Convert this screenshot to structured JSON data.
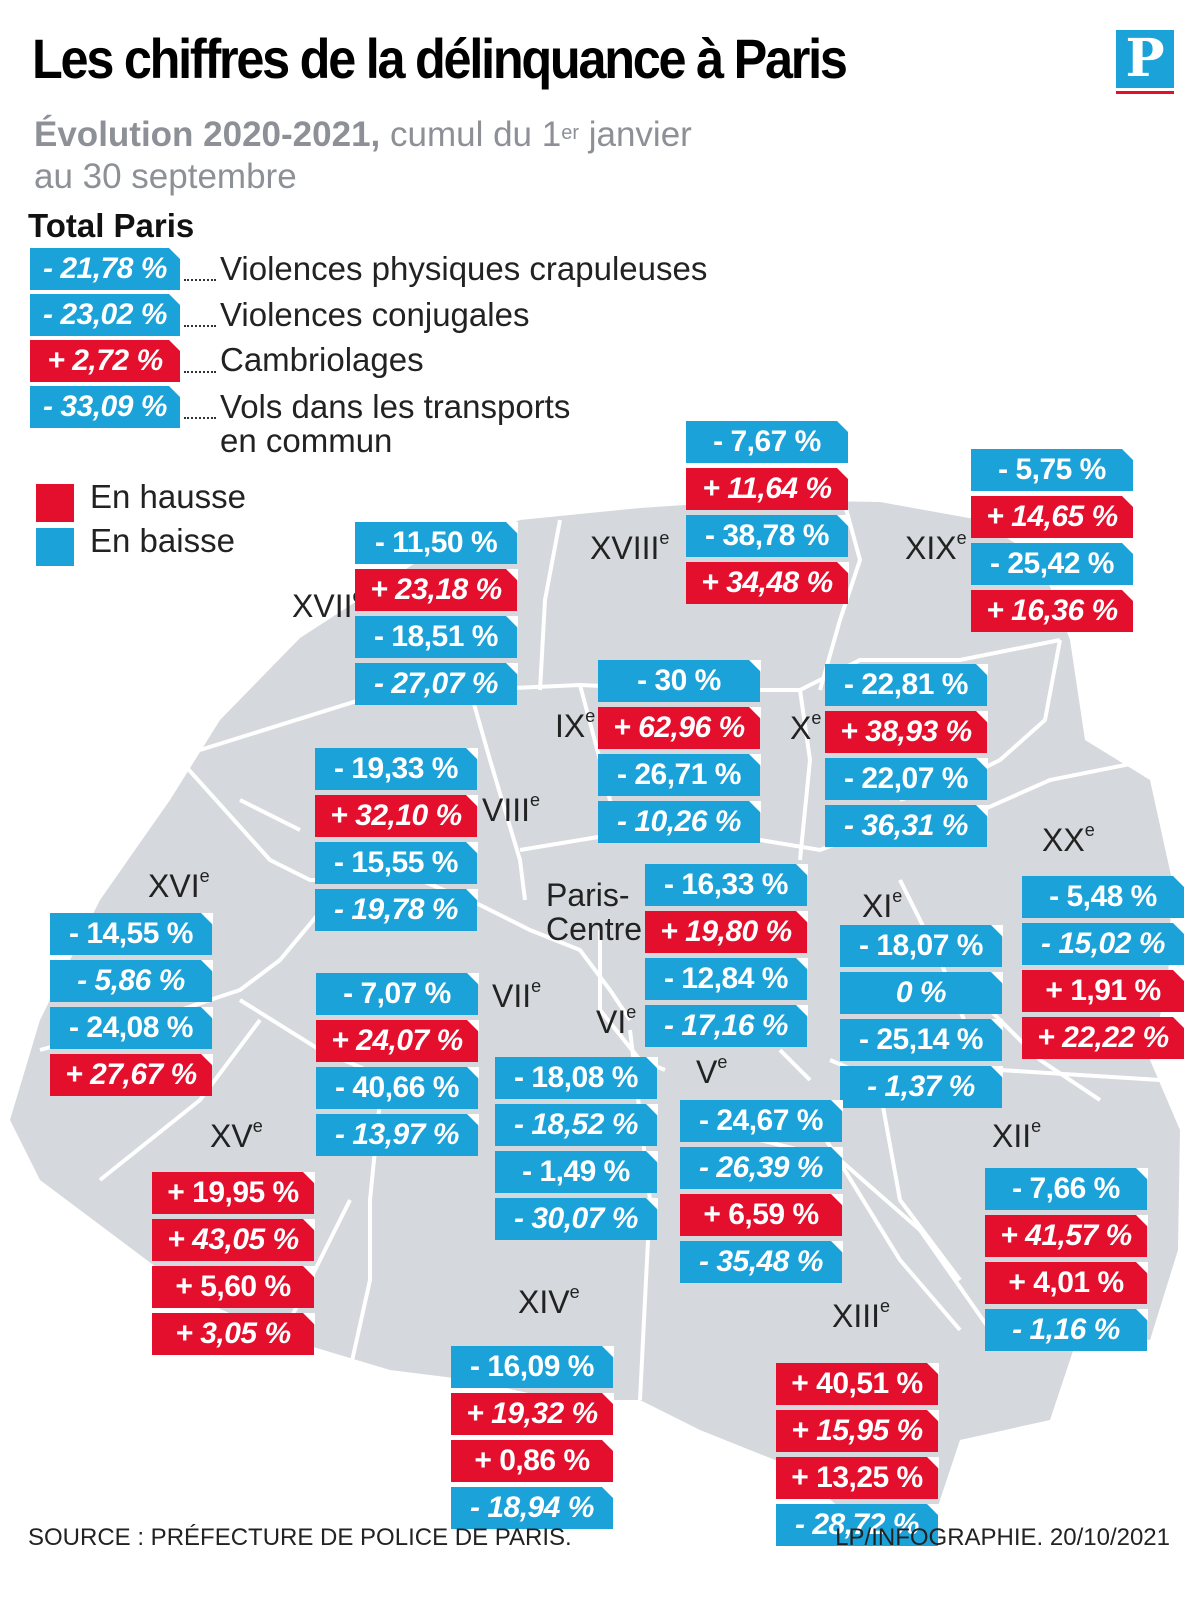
{
  "title": "Les chiffres de la délinquance à Paris",
  "logo_letter": "P",
  "subtitle": {
    "bold": "Évolution 2020-2021,",
    "rest_a": " cumul du 1",
    "sup": "er",
    "rest_b": " janvier",
    "line2": "au 30 septembre"
  },
  "total": {
    "title": "Total Paris",
    "rows": [
      {
        "value": "- 21,78 %",
        "label": "Violences physiques crapuleuses"
      },
      {
        "value": "- 23,02 %",
        "label": "Violences conjugales"
      },
      {
        "value": "+ 2,72 %",
        "label": "Cambriolages"
      },
      {
        "value": "- 33,09 %",
        "label": "Vols dans les transports",
        "label2": "en commun"
      }
    ]
  },
  "key": {
    "up": "En hausse",
    "down": "En baisse"
  },
  "colors": {
    "up": "#e30f2c",
    "down": "#1ba2d8",
    "map": "#d5d8dc"
  },
  "arrondissements": [
    {
      "name": "XVIII",
      "sup": "e",
      "values": [
        "- 7,67 %",
        "+ 11,64 %",
        "- 38,78 %",
        "+ 34,48 %"
      ]
    },
    {
      "name": "XIX",
      "sup": "e",
      "values": [
        "- 5,75 %",
        "+ 14,65 %",
        "- 25,42 %",
        "+ 16,36 %"
      ]
    },
    {
      "name": "XVII",
      "sup": "e",
      "values": [
        "- 11,50 %",
        "+ 23,18 %",
        "- 18,51 %",
        "- 27,07 %"
      ]
    },
    {
      "name": "IX",
      "sup": "e",
      "values": [
        "- 30 %",
        "+ 62,96 %",
        "- 26,71 %",
        "- 10,26 %"
      ]
    },
    {
      "name": "X",
      "sup": "e",
      "values": [
        "- 22,81 %",
        "+ 38,93 %",
        "- 22,07 %",
        "- 36,31 %"
      ]
    },
    {
      "name": "VIII",
      "sup": "e",
      "values": [
        "- 19,33 %",
        "+ 32,10 %",
        "- 15,55 %",
        "- 19,78 %"
      ]
    },
    {
      "name": "XX",
      "sup": "e",
      "values": [
        "- 5,48 %",
        "- 15,02 %",
        "+ 1,91 %",
        "+ 22,22 %"
      ]
    },
    {
      "name": "Paris-",
      "name2": "Centre",
      "values": [
        "- 16,33 %",
        "+ 19,80 %",
        "- 12,84 %",
        "- 17,16 %"
      ]
    },
    {
      "name": "XVI",
      "sup": "e",
      "values": [
        "- 14,55 %",
        "- 5,86 %",
        "- 24,08 %",
        "+ 27,67 %"
      ]
    },
    {
      "name": "XI",
      "sup": "e",
      "values": [
        "- 18,07 %",
        "0 %",
        "- 25,14 %",
        "- 1,37 %"
      ]
    },
    {
      "name": "VII",
      "sup": "e",
      "values": [
        "- 7,07 %",
        "+ 24,07 %",
        "- 40,66 %",
        "- 13,97 %"
      ]
    },
    {
      "name": "VI",
      "sup": "e",
      "values": [
        "- 18,08 %",
        "- 18,52 %",
        "- 1,49 %",
        "- 30,07 %"
      ]
    },
    {
      "name": "V",
      "sup": "e",
      "values": [
        "- 24,67 %",
        "- 26,39 %",
        "+ 6,59 %",
        "- 35,48 %"
      ]
    },
    {
      "name": "XV",
      "sup": "e",
      "values": [
        "+ 19,95 %",
        "+ 43,05 %",
        "+ 5,60 %",
        "+ 3,05 %"
      ]
    },
    {
      "name": "XII",
      "sup": "e",
      "values": [
        "- 7,66 %",
        "+ 41,57 %",
        "+ 4,01 %",
        "- 1,16 %"
      ]
    },
    {
      "name": "XIV",
      "sup": "e",
      "values": [
        "- 16,09 %",
        "+ 19,32 %",
        "+ 0,86 %",
        "- 18,94 %"
      ]
    },
    {
      "name": "XIII",
      "sup": "e",
      "values": [
        "+ 40,51 %",
        "+ 15,95 %",
        "+ 13,25 %",
        "- 28,72 %"
      ]
    }
  ],
  "footer": {
    "source": "SOURCE : PRÉFECTURE DE POLICE DE PARIS.",
    "credit": "LP/INFOGRAPHIE.  20/10/2021"
  }
}
